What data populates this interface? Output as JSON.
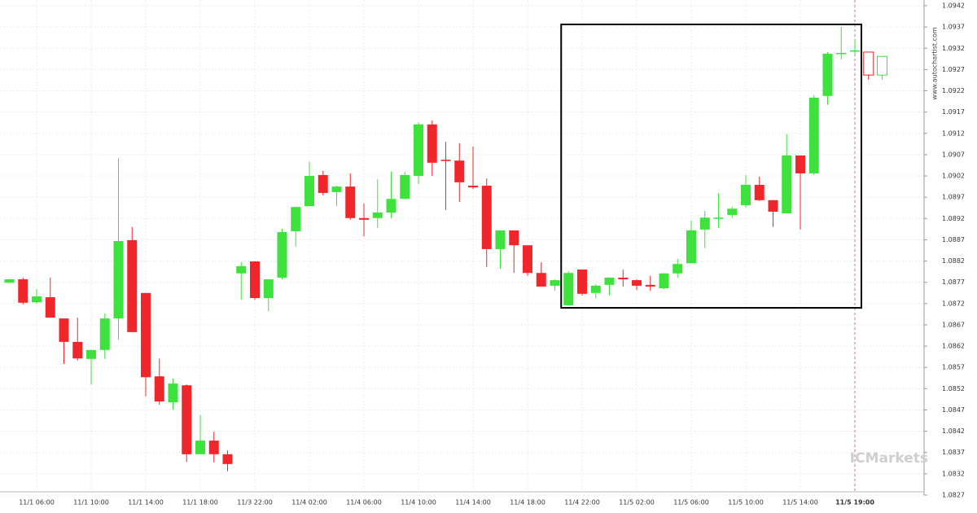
{
  "chart_data": {
    "type": "candlestick",
    "watermark": "www.autochartist.com",
    "brand": "ICMarkets",
    "up_color": "#3de23d",
    "down_color": "#f0262b",
    "ylim": [
      1.0827,
      1.0942
    ],
    "yticks": [
      1.0827,
      1.0832,
      1.0837,
      1.0842,
      1.0847,
      1.0852,
      1.0857,
      1.0862,
      1.0867,
      1.0872,
      1.0877,
      1.0882,
      1.0887,
      1.0892,
      1.0897,
      1.0902,
      1.0907,
      1.0912,
      1.0917,
      1.0922,
      1.0927,
      1.0932,
      1.0937,
      1.0942
    ],
    "grid": true,
    "categories": [
      null,
      null,
      "11/1 06:00",
      null,
      null,
      null,
      "11/1 10:00",
      null,
      null,
      null,
      "11/1 14:00",
      null,
      null,
      null,
      "11/1 18:00",
      null,
      null,
      null,
      "11/3 22:00",
      null,
      null,
      null,
      "11/4 02:00",
      null,
      null,
      null,
      "11/4 06:00",
      null,
      null,
      null,
      "11/4 10:00",
      null,
      null,
      null,
      "11/4 14:00",
      null,
      null,
      null,
      "11/4 18:00",
      null,
      null,
      null,
      "11/4 22:00",
      null,
      null,
      null,
      "11/5 02:00",
      null,
      null,
      null,
      "11/5 06:00",
      null,
      null,
      null,
      "11/5 10:00",
      null,
      null,
      null,
      "11/5 14:00",
      null,
      null,
      null,
      "11/5 19:00",
      null,
      null
    ],
    "current_index": 62,
    "candles": [
      {
        "open": 1.08769,
        "high": 1.08777,
        "low": 1.08769,
        "close": 1.08777
      },
      {
        "open": 1.08777,
        "high": 1.08781,
        "low": 1.08718,
        "close": 1.08722
      },
      {
        "open": 1.08723,
        "high": 1.08754,
        "low": 1.0872,
        "close": 1.08737
      },
      {
        "open": 1.08735,
        "high": 1.08781,
        "low": 1.08687,
        "close": 1.08687
      },
      {
        "open": 1.08685,
        "high": 1.08685,
        "low": 1.08578,
        "close": 1.0863
      },
      {
        "open": 1.0863,
        "high": 1.08687,
        "low": 1.08586,
        "close": 1.08591
      },
      {
        "open": 1.0859,
        "high": 1.08611,
        "low": 1.0853,
        "close": 1.08611
      },
      {
        "open": 1.08611,
        "high": 1.08697,
        "low": 1.0859,
        "close": 1.08685
      },
      {
        "open": 1.08685,
        "high": 1.09062,
        "low": 1.08635,
        "close": 1.08867
      },
      {
        "open": 1.08869,
        "high": 1.089,
        "low": 1.08653,
        "close": 1.08653
      },
      {
        "open": 1.08745,
        "high": 1.08745,
        "low": 1.08502,
        "close": 1.08547
      },
      {
        "open": 1.08549,
        "high": 1.08591,
        "low": 1.08482,
        "close": 1.0849
      },
      {
        "open": 1.08488,
        "high": 1.08544,
        "low": 1.08471,
        "close": 1.08532
      },
      {
        "open": 1.08528,
        "high": 1.0853,
        "low": 1.08348,
        "close": 1.08366
      },
      {
        "open": 1.08366,
        "high": 1.08458,
        "low": 1.08366,
        "close": 1.08398
      },
      {
        "open": 1.08398,
        "high": 1.08419,
        "low": 1.08347,
        "close": 1.08366
      },
      {
        "open": 1.08366,
        "high": 1.08375,
        "low": 1.08326,
        "close": 1.08343
      },
      {
        "open": 1.08791,
        "high": 1.08817,
        "low": 1.08729,
        "close": 1.08808
      },
      {
        "open": 1.08819,
        "high": 1.08819,
        "low": 1.08729,
        "close": 1.08733
      },
      {
        "open": 1.08733,
        "high": 1.08777,
        "low": 1.08702,
        "close": 1.08777
      },
      {
        "open": 1.08781,
        "high": 1.08896,
        "low": 1.08777,
        "close": 1.08888
      },
      {
        "open": 1.0889,
        "high": 1.08947,
        "low": 1.08854,
        "close": 1.08947
      },
      {
        "open": 1.08949,
        "high": 1.09053,
        "low": 1.08949,
        "close": 1.0902
      },
      {
        "open": 1.09022,
        "high": 1.09032,
        "low": 1.08974,
        "close": 1.0898
      },
      {
        "open": 1.08982,
        "high": 1.08997,
        "low": 1.08949,
        "close": 1.08995
      },
      {
        "open": 1.08995,
        "high": 1.09026,
        "low": 1.08917,
        "close": 1.08921
      },
      {
        "open": 1.08921,
        "high": 1.08955,
        "low": 1.08878,
        "close": 1.08917
      },
      {
        "open": 1.08921,
        "high": 1.09012,
        "low": 1.08898,
        "close": 1.08934
      },
      {
        "open": 1.08934,
        "high": 1.0903,
        "low": 1.08921,
        "close": 1.08966
      },
      {
        "open": 1.08966,
        "high": 1.0903,
        "low": 1.08966,
        "close": 1.09022
      },
      {
        "open": 1.0902,
        "high": 1.09146,
        "low": 1.09001,
        "close": 1.09141
      },
      {
        "open": 1.09141,
        "high": 1.0915,
        "low": 1.0902,
        "close": 1.09051
      },
      {
        "open": 1.09058,
        "high": 1.091,
        "low": 1.0894,
        "close": 1.09055
      },
      {
        "open": 1.09056,
        "high": 1.09097,
        "low": 1.08959,
        "close": 1.09005
      },
      {
        "open": 1.08997,
        "high": 1.09089,
        "low": 1.08989,
        "close": 1.08993
      },
      {
        "open": 1.08997,
        "high": 1.09014,
        "low": 1.08806,
        "close": 1.08848
      },
      {
        "open": 1.08848,
        "high": 1.08892,
        "low": 1.08802,
        "close": 1.08892
      },
      {
        "open": 1.08892,
        "high": 1.08892,
        "low": 1.08792,
        "close": 1.08857
      },
      {
        "open": 1.08857,
        "high": 1.08857,
        "low": 1.08785,
        "close": 1.08792
      },
      {
        "open": 1.08792,
        "high": 1.08817,
        "low": 1.0876,
        "close": 1.0876
      },
      {
        "open": 1.08762,
        "high": 1.08777,
        "low": 1.0875,
        "close": 1.08775
      },
      {
        "open": 1.08716,
        "high": 1.08796,
        "low": 1.08716,
        "close": 1.08792
      },
      {
        "open": 1.088,
        "high": 1.088,
        "low": 1.08739,
        "close": 1.08743
      },
      {
        "open": 1.08745,
        "high": 1.08766,
        "low": 1.08733,
        "close": 1.08762
      },
      {
        "open": 1.08764,
        "high": 1.08781,
        "low": 1.08739,
        "close": 1.08781
      },
      {
        "open": 1.08781,
        "high": 1.088,
        "low": 1.0876,
        "close": 1.08777
      },
      {
        "open": 1.08775,
        "high": 1.08777,
        "low": 1.08752,
        "close": 1.08762
      },
      {
        "open": 1.08764,
        "high": 1.08785,
        "low": 1.0875,
        "close": 1.0876
      },
      {
        "open": 1.08756,
        "high": 1.08791,
        "low": 1.08754,
        "close": 1.08791
      },
      {
        "open": 1.08791,
        "high": 1.08825,
        "low": 1.08781,
        "close": 1.08813
      },
      {
        "open": 1.08815,
        "high": 1.08915,
        "low": 1.08815,
        "close": 1.08892
      },
      {
        "open": 1.08894,
        "high": 1.08938,
        "low": 1.0885,
        "close": 1.08922
      },
      {
        "open": 1.08921,
        "high": 1.0898,
        "low": 1.08898,
        "close": 1.08922
      },
      {
        "open": 1.08928,
        "high": 1.08947,
        "low": 1.08921,
        "close": 1.08943
      },
      {
        "open": 1.08951,
        "high": 1.09022,
        "low": 1.08945,
        "close": 1.08999
      },
      {
        "open": 1.08999,
        "high": 1.09018,
        "low": 1.08961,
        "close": 1.08963
      },
      {
        "open": 1.08963,
        "high": 1.08963,
        "low": 1.089,
        "close": 1.08936
      },
      {
        "open": 1.08932,
        "high": 1.09118,
        "low": 1.08932,
        "close": 1.09068
      },
      {
        "open": 1.09068,
        "high": 1.09068,
        "low": 1.08894,
        "close": 1.09026
      },
      {
        "open": 1.09026,
        "high": 1.0921,
        "low": 1.09022,
        "close": 1.09204
      },
      {
        "open": 1.09208,
        "high": 1.09311,
        "low": 1.09187,
        "close": 1.09307
      },
      {
        "open": 1.09307,
        "high": 1.0937,
        "low": 1.09294,
        "close": 1.09309
      },
      {
        "open": 1.09313,
        "high": 1.09342,
        "low": 1.09305,
        "close": 1.09315
      }
    ],
    "projected_candles": [
      {
        "open": 1.09311,
        "high": 1.09311,
        "low": 1.09246,
        "close": 1.09257
      },
      {
        "open": 1.09257,
        "high": 1.09257,
        "low": 1.09246,
        "close": 1.09301
      }
    ],
    "highlight": {
      "from_index": 41,
      "to_index": 62,
      "high": 1.09376,
      "low": 1.0871
    }
  }
}
